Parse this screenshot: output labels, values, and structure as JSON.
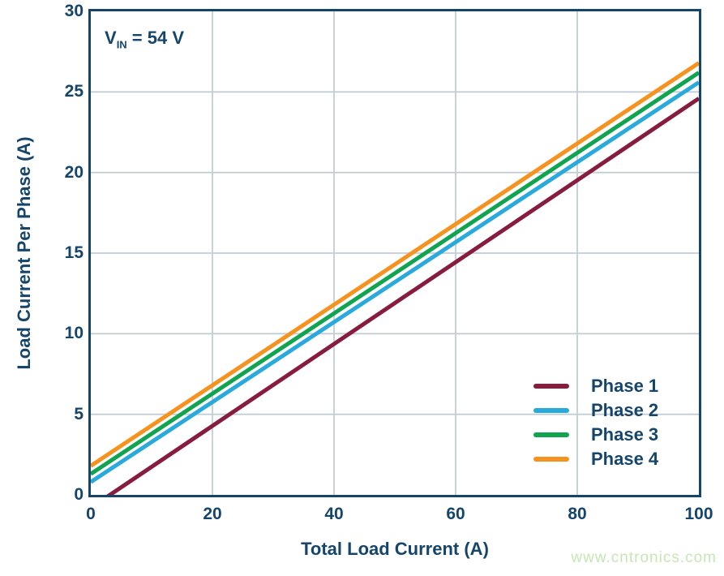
{
  "figure": {
    "annotation": {
      "pre": "V",
      "sub": "IN",
      "post": " = 54 V"
    },
    "watermark": "www.cntronics.com"
  },
  "colors": {
    "text_navy": "#15456B",
    "axis_border": "#15456B",
    "gridline": "#C3CDD4",
    "watermark_green": "#C6E6B4",
    "background": "#FFFFFF"
  },
  "chart_data": {
    "type": "line",
    "title": "",
    "xlabel": "Total Load Current (A)",
    "ylabel": "Load Current Per Phase (A)",
    "xlim": [
      0,
      100
    ],
    "ylim": [
      0,
      30
    ],
    "xticks": [
      0,
      20,
      40,
      60,
      80,
      100
    ],
    "yticks": [
      0,
      5,
      10,
      15,
      20,
      25,
      30
    ],
    "grid": true,
    "legend_position": "inside-lower-right",
    "annotation_text": "VIN = 54 V",
    "series": [
      {
        "name": "Phase 1",
        "color": "#871C3E",
        "x": [
          0,
          100
        ],
        "y": [
          -0.8,
          24.6
        ]
      },
      {
        "name": "Phase 2",
        "color": "#2AA9DC",
        "x": [
          0,
          100
        ],
        "y": [
          0.8,
          25.6
        ]
      },
      {
        "name": "Phase 3",
        "color": "#10A450",
        "x": [
          0,
          100
        ],
        "y": [
          1.3,
          26.2
        ]
      },
      {
        "name": "Phase 4",
        "color": "#F6921E",
        "x": [
          0,
          100
        ],
        "y": [
          1.8,
          26.8
        ]
      }
    ]
  }
}
